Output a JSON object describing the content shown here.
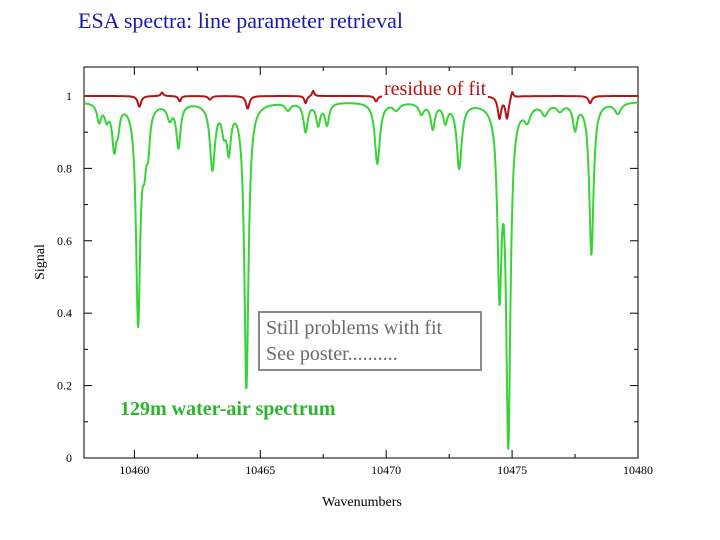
{
  "slide": {
    "title": "ESA spectra: line parameter retrieval"
  },
  "annotations": {
    "residue": "residue of fit",
    "note_line1": "Still problems with fit",
    "note_line2": "See poster..........",
    "spectrum": "129m water-air spectrum"
  },
  "chart_data": {
    "type": "line",
    "xlabel": "Wavenumbers",
    "ylabel": "Signal",
    "xlim": [
      10458,
      10480
    ],
    "ylim": [
      0,
      1.08
    ],
    "x_ticks": [
      10460,
      10465,
      10470,
      10475,
      10480
    ],
    "y_ticks": [
      0,
      0.2,
      0.4,
      0.6,
      0.8,
      1
    ],
    "grid": false,
    "series": [
      {
        "color": "#36d436",
        "baseline": 0.985,
        "lines": [
          {
            "x": 10458.6,
            "depth": 0.05,
            "width": 0.1
          },
          {
            "x": 10458.9,
            "depth": 0.04,
            "width": 0.1
          },
          {
            "x": 10459.2,
            "depth": 0.12,
            "width": 0.1
          },
          {
            "x": 10459.35,
            "depth": 0.05,
            "width": 0.08
          },
          {
            "x": 10460.15,
            "depth": 0.6,
            "width": 0.1
          },
          {
            "x": 10460.4,
            "depth": 0.12,
            "width": 0.1
          },
          {
            "x": 10460.55,
            "depth": 0.09,
            "width": 0.08
          },
          {
            "x": 10461.4,
            "depth": 0.04,
            "width": 0.12
          },
          {
            "x": 10461.75,
            "depth": 0.12,
            "width": 0.1
          },
          {
            "x": 10463.1,
            "depth": 0.18,
            "width": 0.12
          },
          {
            "x": 10463.55,
            "depth": 0.06,
            "width": 0.1
          },
          {
            "x": 10463.75,
            "depth": 0.12,
            "width": 0.1
          },
          {
            "x": 10464.45,
            "depth": 0.79,
            "width": 0.1
          },
          {
            "x": 10466.1,
            "depth": 0.02,
            "width": 0.12
          },
          {
            "x": 10466.8,
            "depth": 0.08,
            "width": 0.1
          },
          {
            "x": 10467.3,
            "depth": 0.06,
            "width": 0.1
          },
          {
            "x": 10467.65,
            "depth": 0.06,
            "width": 0.1
          },
          {
            "x": 10469.65,
            "depth": 0.17,
            "width": 0.12
          },
          {
            "x": 10470.4,
            "depth": 0.02,
            "width": 0.15
          },
          {
            "x": 10471.4,
            "depth": 0.03,
            "width": 0.12
          },
          {
            "x": 10471.85,
            "depth": 0.07,
            "width": 0.1
          },
          {
            "x": 10472.35,
            "depth": 0.05,
            "width": 0.1
          },
          {
            "x": 10472.9,
            "depth": 0.18,
            "width": 0.12
          },
          {
            "x": 10474.5,
            "depth": 0.49,
            "width": 0.1
          },
          {
            "x": 10474.85,
            "depth": 0.92,
            "width": 0.1
          },
          {
            "x": 10475.6,
            "depth": 0.04,
            "width": 0.15
          },
          {
            "x": 10476.3,
            "depth": 0.03,
            "width": 0.15
          },
          {
            "x": 10476.9,
            "depth": 0.02,
            "width": 0.15
          },
          {
            "x": 10477.5,
            "depth": 0.07,
            "width": 0.1
          },
          {
            "x": 10478.15,
            "depth": 0.42,
            "width": 0.1
          },
          {
            "x": 10479.2,
            "depth": 0.03,
            "width": 0.15
          }
        ]
      },
      {
        "color": "#b31414",
        "baseline": 1.0,
        "lines": [
          {
            "x": 10460.2,
            "depth": 0.03,
            "width": 0.08
          },
          {
            "x": 10461.1,
            "depth": -0.01,
            "width": 0.06
          },
          {
            "x": 10461.8,
            "depth": 0.015,
            "width": 0.06
          },
          {
            "x": 10463.0,
            "depth": 0.01,
            "width": 0.08
          },
          {
            "x": 10464.5,
            "depth": 0.035,
            "width": 0.08
          },
          {
            "x": 10466.8,
            "depth": 0.02,
            "width": 0.06
          },
          {
            "x": 10467.1,
            "depth": -0.015,
            "width": 0.05
          },
          {
            "x": 10469.6,
            "depth": 0.015,
            "width": 0.07
          },
          {
            "x": 10473.0,
            "depth": 0.012,
            "width": 0.08
          },
          {
            "x": 10474.5,
            "depth": 0.06,
            "width": 0.08
          },
          {
            "x": 10474.8,
            "depth": 0.06,
            "width": 0.08
          },
          {
            "x": 10475.0,
            "depth": -0.02,
            "width": 0.06
          },
          {
            "x": 10478.1,
            "depth": 0.02,
            "width": 0.08
          }
        ]
      }
    ]
  }
}
